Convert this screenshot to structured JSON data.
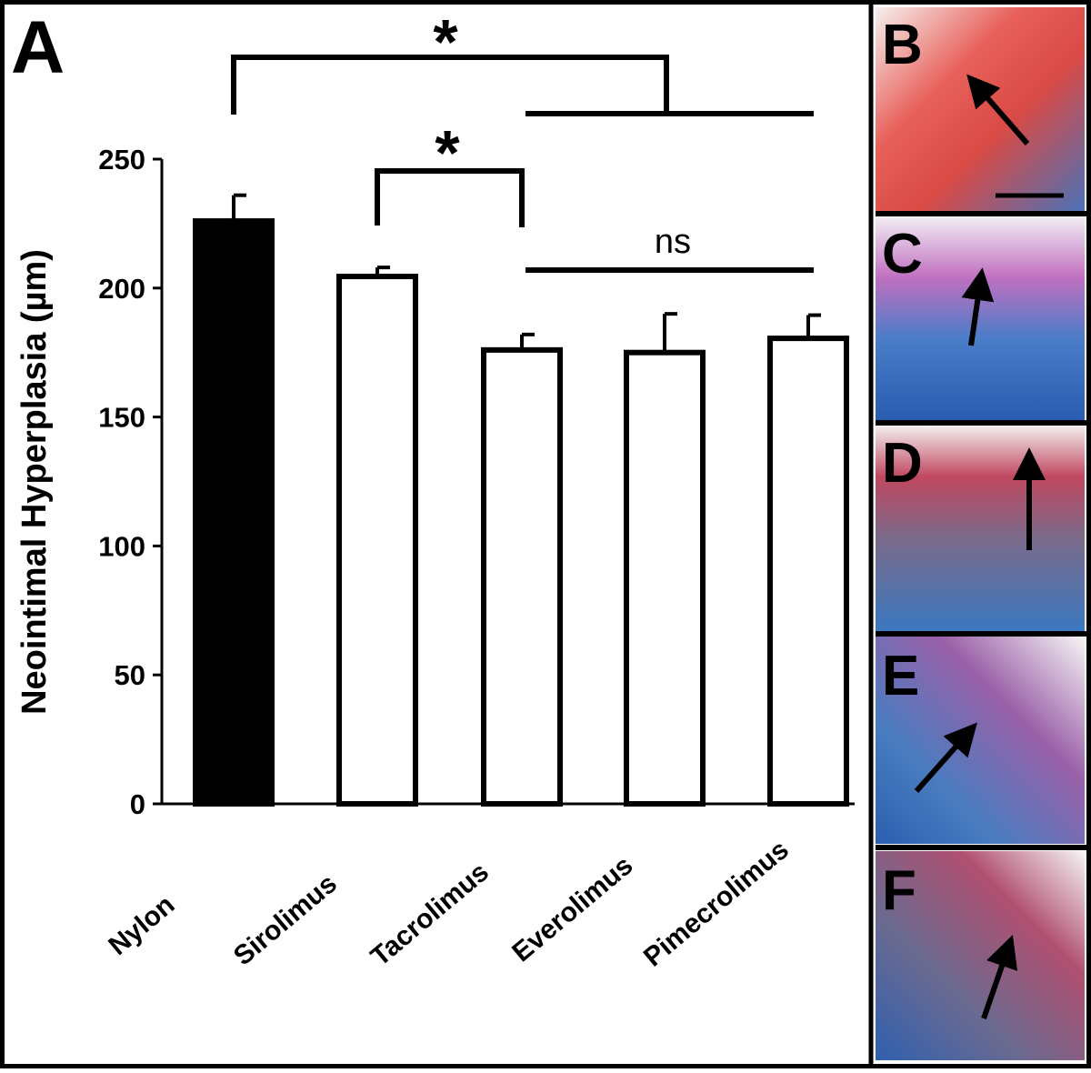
{
  "chart_data": {
    "type": "bar",
    "panel_label": "A",
    "ylabel": "Neointimal Hyperplasia (µm)",
    "categories": [
      "Nylon",
      "Sirolimus",
      "Tacrolimus",
      "Everolimus",
      "Pimecrolimus"
    ],
    "values": [
      226,
      204.5,
      176,
      175,
      180.5
    ],
    "errors": [
      10,
      3.5,
      6,
      15,
      9
    ],
    "colors": [
      "#000000",
      "#ffffff",
      "#ffffff",
      "#ffffff",
      "#ffffff"
    ],
    "ylim": [
      0,
      250
    ],
    "yticks": [
      0,
      50,
      100,
      150,
      200,
      250
    ],
    "annotations": [
      "*",
      "*",
      "ns"
    ]
  },
  "image_panels": [
    "B",
    "C",
    "D",
    "E",
    "F"
  ]
}
